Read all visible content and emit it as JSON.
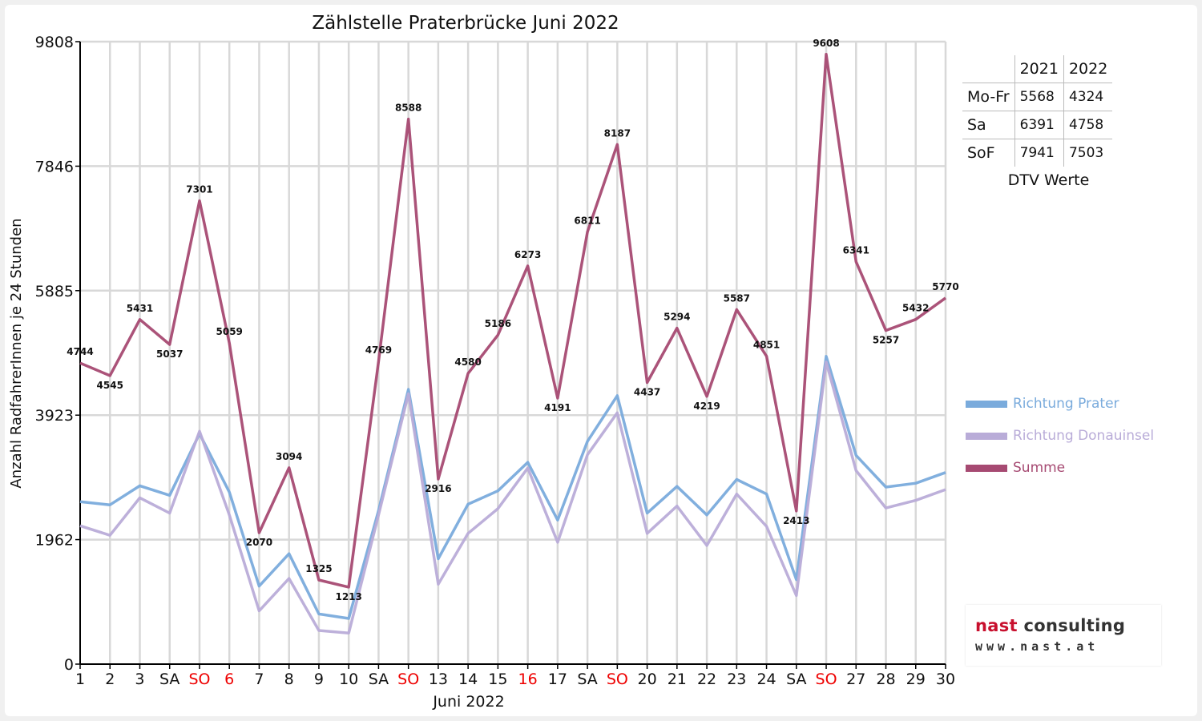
{
  "chart_data": {
    "type": "line",
    "title": "Zählstelle Praterbrücke Juni 2022",
    "xlabel": "Juni 2022",
    "ylabel": "Anzahl RadfahrerInnen je 24 Stunden",
    "ylim": [
      0,
      9808
    ],
    "yticks": [
      0,
      1962,
      3923,
      5885,
      7846,
      9808
    ],
    "grid": true,
    "legend_position": "right",
    "categories": [
      "1",
      "2",
      "3",
      "SA",
      "SO",
      "6",
      "7",
      "8",
      "9",
      "10",
      "SA",
      "SO",
      "13",
      "14",
      "15",
      "16",
      "17",
      "SA",
      "SO",
      "20",
      "21",
      "22",
      "23",
      "24",
      "SA",
      "SO",
      "27",
      "28",
      "29",
      "30"
    ],
    "red_ticks": [
      4,
      5,
      11,
      15,
      18,
      25
    ],
    "series": [
      {
        "name": "Richtung Prater",
        "color": "#7aabdc",
        "values": [
          2560,
          2510,
          2810,
          2660,
          3630,
          2710,
          1230,
          1740,
          790,
          720,
          2420,
          4330,
          1660,
          2520,
          2730,
          3180,
          2270,
          3510,
          4230,
          2380,
          2800,
          2350,
          2910,
          2680,
          1330,
          4850,
          3290,
          2790,
          2850,
          3020
        ]
      },
      {
        "name": "Richtung Donauinsel",
        "color": "#b9acd8",
        "values": [
          2180,
          2030,
          2620,
          2380,
          3670,
          2350,
          840,
          1350,
          530,
          490,
          2350,
          4260,
          1260,
          2060,
          2450,
          3090,
          1920,
          3300,
          3960,
          2060,
          2490,
          1870,
          2680,
          2170,
          1080,
          4760,
          3050,
          2460,
          2580,
          2750
        ]
      },
      {
        "name": "Summe",
        "color": "#a64a72",
        "values": [
          4744,
          4545,
          5431,
          5037,
          7301,
          5059,
          2070,
          3094,
          1325,
          1213,
          4769,
          8588,
          2916,
          4580,
          5186,
          6273,
          4191,
          6811,
          8187,
          4437,
          5294,
          4219,
          5587,
          4851,
          2413,
          9608,
          6341,
          5257,
          5432,
          5770
        ],
        "data_labels": true
      }
    ]
  },
  "dtv": {
    "caption": "DTV Werte",
    "columns": [
      "2021",
      "2022"
    ],
    "rows": [
      {
        "label": "Mo-Fr",
        "v2021": "5568",
        "v2022": "4324"
      },
      {
        "label": "Sa",
        "v2021": "6391",
        "v2022": "4758"
      },
      {
        "label": "SoF",
        "v2021": "7941",
        "v2022": "7503"
      }
    ]
  },
  "logo": {
    "name_red": "nast",
    "name_dark": " consulting",
    "url": "www.nast.at"
  }
}
